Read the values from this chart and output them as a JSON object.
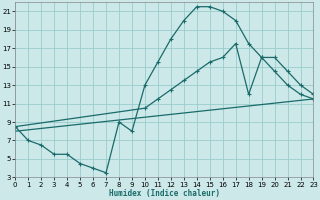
{
  "xlabel": "Humidex (Indice chaleur)",
  "bg_color": "#cce8e8",
  "grid_color": "#99cccc",
  "line_color": "#1a6b6b",
  "xlim": [
    0,
    23
  ],
  "ylim": [
    3,
    22
  ],
  "xticks": [
    0,
    1,
    2,
    3,
    4,
    5,
    6,
    7,
    8,
    9,
    10,
    11,
    12,
    13,
    14,
    15,
    16,
    17,
    18,
    19,
    20,
    21,
    22,
    23
  ],
  "yticks": [
    3,
    5,
    7,
    9,
    11,
    13,
    15,
    17,
    19,
    21
  ],
  "line1_x": [
    0,
    1,
    2,
    3,
    4,
    5,
    6,
    7,
    8,
    9,
    10,
    11,
    12,
    13,
    14,
    15,
    16,
    17,
    18,
    19,
    20,
    21,
    22,
    23
  ],
  "line1_y": [
    8.5,
    7,
    6.5,
    5.5,
    5.5,
    4.5,
    4,
    3.5,
    9,
    8,
    13,
    15.5,
    18,
    20,
    21.5,
    21.5,
    21,
    20,
    17.5,
    16,
    14.5,
    13,
    12,
    11.5
  ],
  "line2_x": [
    0,
    10,
    11,
    12,
    13,
    14,
    15,
    16,
    17,
    18,
    19,
    20,
    21,
    22,
    23
  ],
  "line2_y": [
    8.5,
    10.5,
    11.5,
    12.5,
    13.5,
    14.5,
    15.5,
    16,
    17.5,
    12,
    16,
    16,
    14.5,
    13,
    12
  ],
  "line3_x": [
    0,
    23
  ],
  "line3_y": [
    8,
    11.5
  ]
}
